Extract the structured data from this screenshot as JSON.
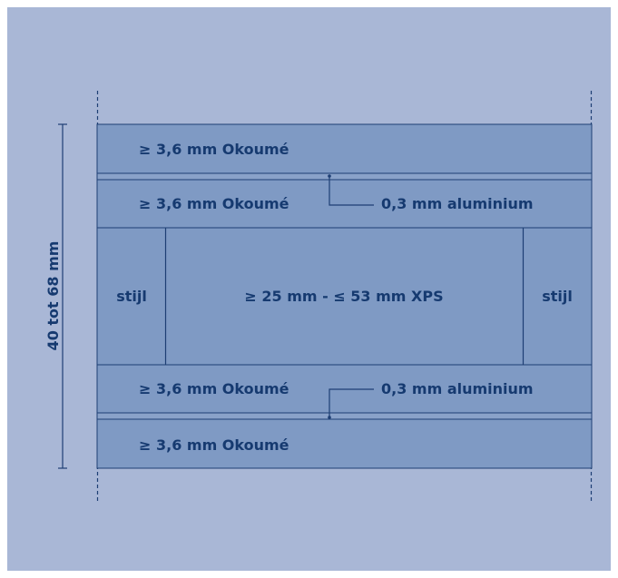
{
  "colors": {
    "background": "#a9b7d6",
    "panel_fill": "#7f9ac4",
    "line": "#1e3f74",
    "text": "#163a70"
  },
  "dimension": {
    "label": "40 tot 68 mm"
  },
  "layers": {
    "top_outer": "≥ 3,6 mm Okoumé",
    "top_inner": "≥ 3,6 mm Okoumé",
    "top_aluminium": "0,3 mm aluminium",
    "core_left": "stijl",
    "core_center": "≥ 25 mm - ≤ 53 mm XPS",
    "core_right": "stijl",
    "bottom_inner": "≥ 3,6 mm Okoumé",
    "bottom_aluminium": "0,3 mm aluminium",
    "bottom_outer": "≥ 3,6 mm Okoumé"
  }
}
